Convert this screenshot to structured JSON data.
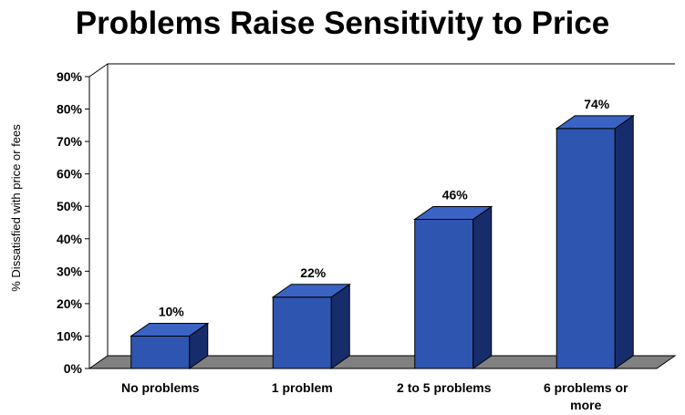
{
  "chart_data": {
    "type": "bar",
    "title": "Problems Raise Sensitivity to Price",
    "ylabel": "% Dissatisfied with price or fees",
    "xlabel": "",
    "categories": [
      "No problems",
      "1 problem",
      "2 to 5 problems",
      "6 problems or more"
    ],
    "category_lines": [
      [
        "No problems"
      ],
      [
        "1 problem"
      ],
      [
        "2 to 5 problems"
      ],
      [
        "6 problems or",
        "more"
      ]
    ],
    "values": [
      10,
      22,
      46,
      74
    ],
    "data_labels": [
      "10%",
      "22%",
      "46%",
      "74%"
    ],
    "ylim": [
      0,
      90
    ],
    "yticks": [
      0,
      10,
      20,
      30,
      40,
      50,
      60,
      70,
      80,
      90
    ],
    "ytick_labels": [
      "0%",
      "10%",
      "20%",
      "30%",
      "40%",
      "50%",
      "60%",
      "70%",
      "80%",
      "90%"
    ],
    "grid": false,
    "style": "3d",
    "colors": {
      "bar_front": "#2e55b0",
      "bar_top": "#3a63c4",
      "bar_side": "#172d6b",
      "floor": "#808080"
    }
  }
}
